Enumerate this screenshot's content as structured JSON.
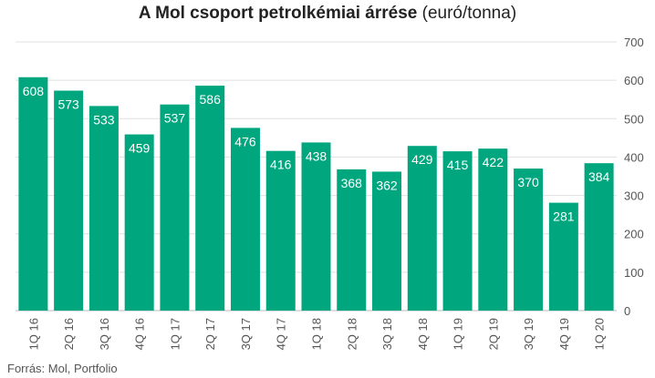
{
  "chart_data": {
    "type": "bar",
    "title": "A Mol csoport petrolkémiai árrése",
    "title_unit": "(euró/tonna)",
    "categories": [
      "1Q 16",
      "2Q 16",
      "3Q 16",
      "4Q 16",
      "1Q 17",
      "2Q 17",
      "3Q 17",
      "4Q 17",
      "1Q 18",
      "2Q 18",
      "3Q 18",
      "4Q 18",
      "1Q 19",
      "2Q 19",
      "3Q 19",
      "4Q 19",
      "1Q 20"
    ],
    "values": [
      608,
      573,
      533,
      459,
      537,
      586,
      476,
      416,
      438,
      368,
      362,
      429,
      415,
      422,
      370,
      281,
      384
    ],
    "ylim": [
      0,
      700
    ],
    "yticks": [
      0,
      100,
      200,
      300,
      400,
      500,
      600,
      700
    ],
    "y_axis_side": "right",
    "grid": true,
    "bar_color": "#00a77e",
    "label_color": "#ffffff"
  },
  "source": "Forrás: Mol, Portfolio"
}
